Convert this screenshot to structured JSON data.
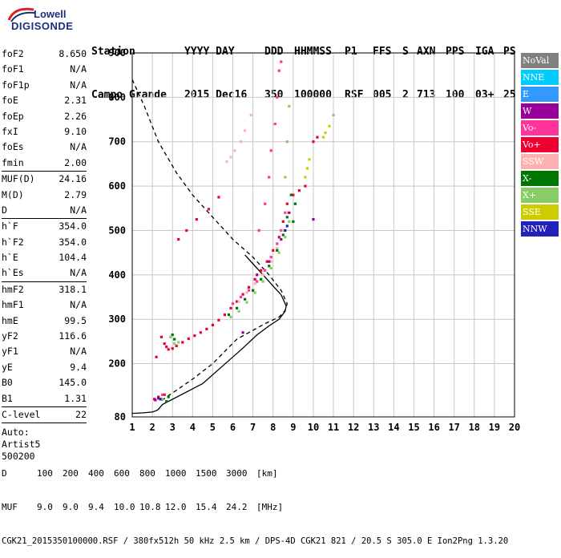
{
  "brand": {
    "line1": "Lowell",
    "line2": "DIGISONDE"
  },
  "header": {
    "row1": [
      "Station",
      "YYYY DAY",
      "DDD",
      "HHMMSS",
      "P1",
      "FFS",
      "S",
      "AXN",
      "PPS",
      "IGA",
      "PS"
    ],
    "row2": [
      "Campo Grande",
      "2015 Dec16",
      "350",
      "100000",
      "RSF",
      "005",
      "2",
      "713",
      "100",
      "03+",
      "25"
    ]
  },
  "params": {
    "group1": [
      {
        "label": "foF2",
        "value": "8.650"
      },
      {
        "label": "foF1",
        "value": "N/A"
      },
      {
        "label": "foF1p",
        "value": "N/A"
      },
      {
        "label": "foE",
        "value": "2.31"
      },
      {
        "label": "foEp",
        "value": "2.26"
      },
      {
        "label": "fxI",
        "value": "9.10"
      },
      {
        "label": "foEs",
        "value": "N/A"
      },
      {
        "label": "fmin",
        "value": "2.00"
      }
    ],
    "group2": [
      {
        "label": "MUF(D)",
        "value": "24.16"
      },
      {
        "label": "M(D)",
        "value": "2.79"
      },
      {
        "label": "D",
        "value": "N/A"
      }
    ],
    "group3": [
      {
        "label": "h`F",
        "value": "354.0"
      },
      {
        "label": "h`F2",
        "value": "354.0"
      },
      {
        "label": "h`E",
        "value": "104.4"
      },
      {
        "label": "h`Es",
        "value": "N/A"
      }
    ],
    "group4": [
      {
        "label": "hmF2",
        "value": "318.1"
      },
      {
        "label": "hmF1",
        "value": "N/A"
      },
      {
        "label": "hmE",
        "value": "99.5"
      },
      {
        "label": "yF2",
        "value": "116.6"
      },
      {
        "label": "yF1",
        "value": "N/A"
      },
      {
        "label": "yE",
        "value": "9.4"
      },
      {
        "label": "B0",
        "value": "145.0"
      },
      {
        "label": "B1",
        "value": "1.31"
      }
    ],
    "clevel": {
      "label": "C-level",
      "value": "22"
    },
    "auto": [
      "Auto:",
      "Artist5",
      "500200"
    ]
  },
  "legend": [
    {
      "label": "NoVal",
      "color": "#808080",
      "text": "#ffffff"
    },
    {
      "label": "NNE",
      "color": "#00ccff",
      "text": "#ffffff"
    },
    {
      "label": "E",
      "color": "#3399ff",
      "text": "#ffffff"
    },
    {
      "label": "W",
      "color": "#990099",
      "text": "#ffffff"
    },
    {
      "label": "Vo-",
      "color": "#ff3399",
      "text": "#ffffff"
    },
    {
      "label": "Vo+",
      "color": "#ee0033",
      "text": "#ffffff"
    },
    {
      "label": "SSW",
      "color": "#ffb0b0",
      "text": "#ffffff"
    },
    {
      "label": "X-",
      "color": "#007700",
      "text": "#ffffff"
    },
    {
      "label": "X+",
      "color": "#88cc66",
      "text": "#ffffff"
    },
    {
      "label": "SSE",
      "color": "#cccc00",
      "text": "#ffffff"
    },
    {
      "label": "NNW",
      "color": "#2222bb",
      "text": "#ffffff"
    }
  ],
  "footer": {
    "d_label": "D",
    "d_values": [
      "100",
      "200",
      "400",
      "600",
      "800",
      "1000",
      "1500",
      "3000",
      "[km]"
    ],
    "muf_label": "MUF",
    "muf_values": [
      "9.0",
      "9.0",
      "9.4",
      "10.0",
      "10.8",
      "12.0",
      "15.4",
      "24.2",
      "[MHz]"
    ],
    "info": "CGK21_2015350100000.RSF / 380fx512h 50 kHz 2.5 km / DPS-4D CGK21 821 / 20.5 S 305.0 E Ion2Png 1.3.20"
  },
  "chart_data": {
    "type": "scatter",
    "title": "",
    "xlabel": "",
    "ylabel": "",
    "xlim": [
      1,
      20
    ],
    "ylim": [
      80,
      900
    ],
    "xticks": [
      1,
      2,
      3,
      4,
      5,
      6,
      7,
      8,
      9,
      10,
      11,
      12,
      13,
      14,
      15,
      16,
      17,
      18,
      19,
      20
    ],
    "yticks": [
      80,
      200,
      300,
      400,
      500,
      600,
      700,
      800,
      900
    ],
    "grid": true,
    "series": [
      {
        "name": "Vo+",
        "color": "#ee0033",
        "points": [
          [
            2.2,
            215
          ],
          [
            2.45,
            260
          ],
          [
            2.6,
            245
          ],
          [
            2.7,
            238
          ],
          [
            2.8,
            232
          ],
          [
            3.0,
            234
          ],
          [
            3.2,
            240
          ],
          [
            3.5,
            248
          ],
          [
            3.8,
            256
          ],
          [
            4.1,
            263
          ],
          [
            4.4,
            270
          ],
          [
            4.7,
            278
          ],
          [
            5.0,
            287
          ],
          [
            5.3,
            298
          ],
          [
            5.6,
            310
          ],
          [
            5.9,
            325
          ],
          [
            6.2,
            340
          ],
          [
            6.5,
            356
          ],
          [
            6.8,
            372
          ],
          [
            7.1,
            390
          ],
          [
            7.4,
            410
          ],
          [
            7.7,
            430
          ],
          [
            8.0,
            455
          ],
          [
            8.3,
            485
          ],
          [
            8.5,
            520
          ],
          [
            8.7,
            560
          ],
          [
            9.0,
            580
          ],
          [
            9.3,
            590
          ],
          [
            9.6,
            600
          ],
          [
            10.0,
            700
          ],
          [
            10.2,
            710
          ],
          [
            3.3,
            480
          ],
          [
            3.7,
            500
          ],
          [
            4.2,
            525
          ],
          [
            4.8,
            548
          ],
          [
            5.3,
            575
          ],
          [
            2.1,
            120
          ],
          [
            2.3,
            125
          ],
          [
            2.6,
            130
          ]
        ]
      },
      {
        "name": "Vo-",
        "color": "#ff3399",
        "points": [
          [
            2.5,
            130
          ],
          [
            6.0,
            335
          ],
          [
            6.4,
            350
          ],
          [
            6.8,
            365
          ],
          [
            7.2,
            385
          ],
          [
            7.6,
            410
          ],
          [
            7.9,
            440
          ],
          [
            8.2,
            470
          ],
          [
            8.4,
            500
          ],
          [
            8.6,
            540
          ],
          [
            7.3,
            500
          ],
          [
            7.6,
            560
          ],
          [
            7.8,
            620
          ],
          [
            7.9,
            680
          ],
          [
            8.1,
            740
          ],
          [
            8.2,
            800
          ],
          [
            8.3,
            860
          ],
          [
            8.4,
            880
          ]
        ]
      },
      {
        "name": "SSW",
        "color": "#ffb0b0",
        "points": [
          [
            6.3,
            340
          ],
          [
            6.7,
            360
          ],
          [
            7.1,
            380
          ],
          [
            7.5,
            400
          ],
          [
            7.9,
            430
          ],
          [
            8.2,
            460
          ],
          [
            8.5,
            500
          ],
          [
            8.7,
            540
          ],
          [
            5.7,
            655
          ],
          [
            5.9,
            665
          ],
          [
            6.1,
            680
          ],
          [
            6.4,
            700
          ],
          [
            6.6,
            725
          ],
          [
            6.9,
            760
          ]
        ]
      },
      {
        "name": "X-",
        "color": "#007700",
        "points": [
          [
            2.7,
            115
          ],
          [
            2.8,
            125
          ],
          [
            3.0,
            265
          ],
          [
            3.1,
            255
          ],
          [
            5.8,
            310
          ],
          [
            6.2,
            325
          ],
          [
            6.6,
            345
          ],
          [
            7.0,
            365
          ],
          [
            7.4,
            390
          ],
          [
            7.8,
            420
          ],
          [
            8.2,
            455
          ],
          [
            8.5,
            490
          ],
          [
            8.7,
            530
          ],
          [
            8.9,
            580
          ],
          [
            9.0,
            520
          ],
          [
            9.1,
            560
          ]
        ]
      },
      {
        "name": "X+",
        "color": "#88cc66",
        "points": [
          [
            2.5,
            120
          ],
          [
            2.9,
            260
          ],
          [
            3.1,
            245
          ],
          [
            3.3,
            248
          ],
          [
            5.9,
            305
          ],
          [
            6.3,
            318
          ],
          [
            6.7,
            338
          ],
          [
            7.1,
            360
          ],
          [
            7.5,
            385
          ],
          [
            7.9,
            415
          ],
          [
            8.3,
            450
          ],
          [
            8.6,
            485
          ],
          [
            8.8,
            520
          ],
          [
            8.6,
            620
          ],
          [
            8.7,
            700
          ],
          [
            8.8,
            780
          ],
          [
            11.0,
            760
          ]
        ]
      },
      {
        "name": "SSE",
        "color": "#cccc00",
        "points": [
          [
            9.6,
            620
          ],
          [
            9.7,
            640
          ],
          [
            9.8,
            660
          ],
          [
            10.5,
            710
          ],
          [
            10.6,
            720
          ],
          [
            10.8,
            735
          ]
        ]
      },
      {
        "name": "W",
        "color": "#990099",
        "points": [
          [
            2.15,
            118
          ],
          [
            2.3,
            122
          ],
          [
            7.2,
            400
          ],
          [
            7.8,
            430
          ],
          [
            8.4,
            480
          ],
          [
            8.8,
            540
          ],
          [
            10.0,
            525
          ],
          [
            6.5,
            270
          ]
        ]
      },
      {
        "name": "NNW",
        "color": "#2222bb",
        "points": [
          [
            2.4,
            120
          ],
          [
            8.6,
            500
          ],
          [
            8.7,
            510
          ]
        ]
      }
    ],
    "profiles": [
      {
        "name": "electron density profile (solid)",
        "style": "solid",
        "points": [
          [
            1.0,
            88
          ],
          [
            1.5,
            89
          ],
          [
            2.0,
            91
          ],
          [
            2.2,
            94
          ],
          [
            2.3,
            97
          ],
          [
            2.5,
            108
          ],
          [
            4.5,
            155
          ],
          [
            5.5,
            195
          ],
          [
            6.5,
            235
          ],
          [
            7.2,
            265
          ],
          [
            7.8,
            285
          ],
          [
            8.3,
            300
          ],
          [
            8.6,
            318
          ],
          [
            8.65,
            330
          ],
          [
            8.4,
            355
          ],
          [
            8.0,
            375
          ],
          [
            7.5,
            400
          ],
          [
            7.0,
            425
          ],
          [
            6.6,
            445
          ]
        ]
      },
      {
        "name": "extrapolated profile (dashed)",
        "style": "dashed",
        "points": [
          [
            1.0,
            840
          ],
          [
            1.6,
            780
          ],
          [
            2.3,
            700
          ],
          [
            3.2,
            630
          ],
          [
            4.0,
            580
          ],
          [
            5.0,
            530
          ],
          [
            6.0,
            480
          ],
          [
            7.0,
            440
          ],
          [
            7.8,
            400
          ],
          [
            8.4,
            365
          ],
          [
            8.7,
            335
          ],
          [
            8.6,
            320
          ],
          [
            8.3,
            305
          ],
          [
            7.6,
            290
          ],
          [
            7.0,
            275
          ],
          [
            6.2,
            255
          ],
          [
            5.0,
            200
          ],
          [
            4.0,
            165
          ],
          [
            3.2,
            140
          ],
          [
            2.7,
            125
          ],
          [
            2.4,
            114
          ]
        ]
      }
    ]
  }
}
